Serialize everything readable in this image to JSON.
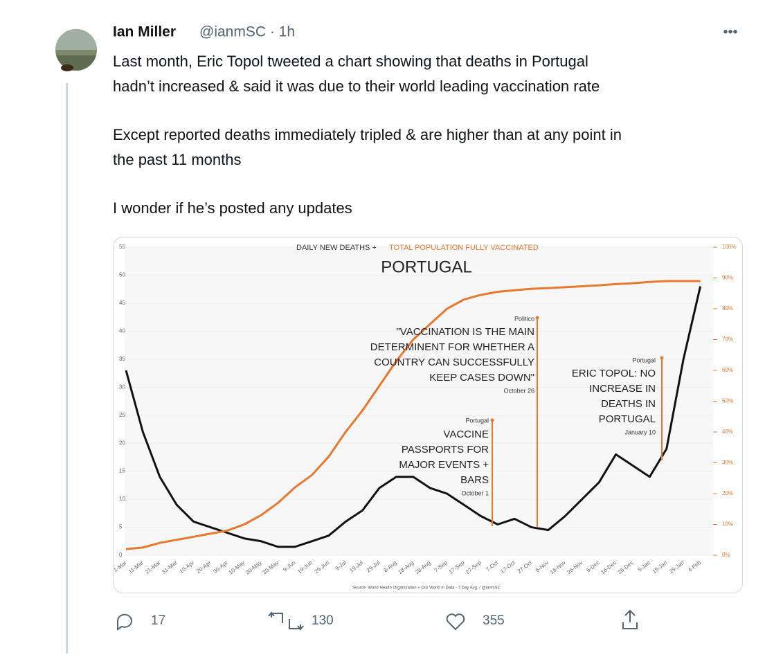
{
  "tweet": {
    "name": "Ian Miller",
    "handle": "@ianmSC · 1h",
    "paragraphs": [
      [
        "Last month, Eric Topol tweeted a chart showing that deaths in Portugal",
        "hadn’t increased & said it was due to their world leading vaccination rate"
      ],
      [
        "Except reported deaths immediately tripled & are higher than at any point in",
        "the past 11 months"
      ],
      [
        "I wonder if he’s posted any updates"
      ]
    ],
    "replies": "17",
    "retweets": "130",
    "likes": "355"
  },
  "chart_data": {
    "type": "line",
    "title": "PORTUGAL",
    "subtitle_parts": [
      "DAILY NEW DEATHS +",
      "TOTAL POPULATION FULLY VACCINATED"
    ],
    "source": "Source: World Health Organization + Our World in Data - 7 Day Avg. / @ianmSC",
    "categories": [
      "1-Mar",
      "11-Mar",
      "21-Mar",
      "31-Mar",
      "10-Apr",
      "20-Apr",
      "30-Apr",
      "10-May",
      "20-May",
      "30-May",
      "9-Jun",
      "19-Jun",
      "29-Jun",
      "9-Jul",
      "19-Jul",
      "29-Jul",
      "8-Aug",
      "18-Aug",
      "28-Aug",
      "7-Sep",
      "17-Sep",
      "27-Sep",
      "7-Oct",
      "17-Oct",
      "27-Oct",
      "6-Nov",
      "16-Nov",
      "26-Nov",
      "6-Dec",
      "16-Dec",
      "26-Dec",
      "5-Jan",
      "15-Jan",
      "25-Jan",
      "4-Feb"
    ],
    "series": [
      {
        "name": "Daily new deaths",
        "color": "#111111",
        "values": [
          33,
          22,
          14,
          9,
          6,
          5,
          4,
          3,
          2.5,
          1.5,
          1.5,
          2.5,
          3.5,
          6,
          8,
          12,
          14,
          14,
          12,
          11,
          9,
          7,
          5.5,
          6.5,
          5,
          4.5,
          7,
          10,
          13,
          18,
          16,
          14,
          19,
          35,
          48
        ]
      },
      {
        "name": "Fully vaccinated",
        "color": "#e8782f",
        "axis": "y2",
        "values": [
          2,
          2.5,
          4,
          5,
          6,
          7,
          8,
          10,
          13,
          17,
          22,
          26,
          32,
          40,
          47,
          55,
          63,
          70,
          75,
          80,
          83,
          84.5,
          85.5,
          86,
          86.5,
          86.7,
          87,
          87.3,
          87.6,
          88,
          88.3,
          88.7,
          89,
          89,
          89
        ]
      }
    ],
    "ylim": [
      0,
      55
    ],
    "yticks": [
      0,
      5,
      10,
      15,
      20,
      25,
      30,
      35,
      40,
      45,
      50,
      55
    ],
    "y2lim": [
      0,
      100
    ],
    "y2ticks": [
      {
        "value": 0,
        "label": "0%"
      },
      {
        "value": 10,
        "label": "10%"
      },
      {
        "value": 20,
        "label": "20%"
      },
      {
        "value": 30,
        "label": "30%"
      },
      {
        "value": 40,
        "label": "40%"
      },
      {
        "value": 50,
        "label": "50%"
      },
      {
        "value": 60,
        "label": "60%"
      },
      {
        "value": 70,
        "label": "70%"
      },
      {
        "value": 80,
        "label": "80%"
      },
      {
        "value": 90,
        "label": "90%"
      },
      {
        "value": 100,
        "label": "100%"
      }
    ],
    "annotations": [
      {
        "source": "Portugal",
        "lines": [
          "VACCINE",
          "PASSPORTS FOR",
          "MAJOR EVENTS +",
          "BARS"
        ],
        "date": "October 1"
      },
      {
        "source": "Politico",
        "lines": [
          "\"VACCINATION IS THE MAIN",
          "DETERMINENT FOR WHETHER A",
          "COUNTRY CAN SUCCESSFULLY",
          "KEEP CASES DOWN\""
        ],
        "date": "October 26"
      },
      {
        "source": "Portugal",
        "lines": [
          "ERIC TOPOL: NO",
          "INCREASE IN",
          "DEATHS IN",
          "PORTUGAL"
        ],
        "date": "January 10"
      }
    ]
  }
}
